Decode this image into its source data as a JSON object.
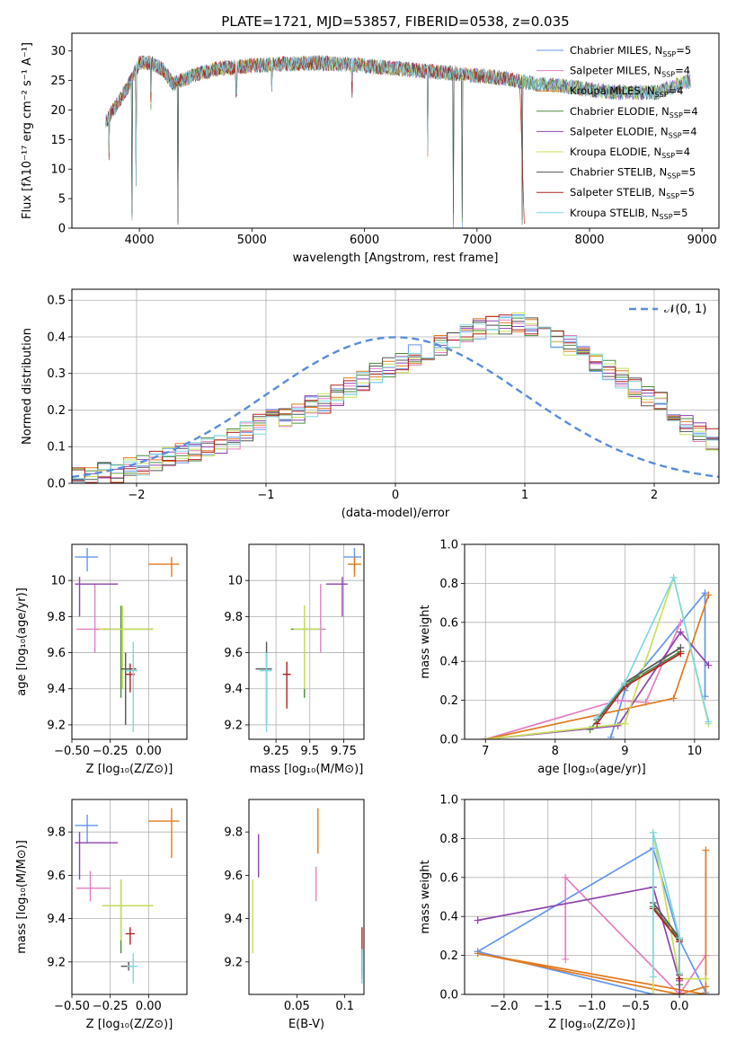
{
  "title": "PLATE=1721, MJD=53857, FIBERID=0538, z=0.035",
  "models": [
    {
      "name": "Chabrier MILES",
      "nssp": 5,
      "color": "#6495ED"
    },
    {
      "name": "Salpeter MILES",
      "nssp": 4,
      "color": "#E37FC0"
    },
    {
      "name": "Kroupa MILES",
      "nssp": 4,
      "color": "#E07A1F"
    },
    {
      "name": "Chabrier ELODIE",
      "nssp": 4,
      "color": "#4C8A3E"
    },
    {
      "name": "Salpeter ELODIE",
      "nssp": 4,
      "color": "#8E44AD"
    },
    {
      "name": "Kroupa ELODIE",
      "nssp": 4,
      "color": "#C8E05A"
    },
    {
      "name": "Chabrier STELIB",
      "nssp": 5,
      "color": "#555555"
    },
    {
      "name": "Salpeter STELIB",
      "nssp": 5,
      "color": "#B22222"
    },
    {
      "name": "Kroupa STELIB",
      "nssp": 5,
      "color": "#7FD8E0"
    }
  ],
  "chart_data": [
    {
      "type": "line",
      "id": "spectrum",
      "title": "PLATE=1721, MJD=53857, FIBERID=0538, z=0.035",
      "xlabel": "wavelength [Angstrom, rest frame]",
      "ylabel": "Flux [fλ10⁻¹⁷ erg cm⁻² s⁻¹ A⁻¹]",
      "xlim": [
        3400,
        9150
      ],
      "ylim": [
        0,
        33
      ],
      "xticks": [
        4000,
        5000,
        6000,
        7000,
        8000,
        9000
      ],
      "yticks": [
        0,
        5,
        10,
        15,
        20,
        25,
        30
      ],
      "grid": false,
      "legend": "top-right",
      "continuum": {
        "x": [
          3700,
          3800,
          3900,
          4000,
          4100,
          4200,
          4300,
          4500,
          4700,
          5000,
          5300,
          5600,
          6000,
          6300,
          6600,
          6900,
          7200,
          7500,
          7800,
          8200,
          8600,
          8900
        ],
        "y": [
          18,
          21,
          24,
          28,
          28,
          27,
          24.5,
          26,
          27,
          27.5,
          27.8,
          28,
          27.5,
          27,
          26.5,
          26,
          25.5,
          24.5,
          24,
          23,
          23,
          25
        ]
      },
      "dips": [
        {
          "x": 3728,
          "y": 11
        },
        {
          "x": 3933,
          "y": 0
        },
        {
          "x": 3969,
          "y": 7
        },
        {
          "x": 4102,
          "y": 20
        },
        {
          "x": 4340,
          "y": 0
        },
        {
          "x": 4861,
          "y": 22
        },
        {
          "x": 5175,
          "y": 23
        },
        {
          "x": 5890,
          "y": 22
        },
        {
          "x": 6563,
          "y": 12
        },
        {
          "x": 6790,
          "y": 0
        },
        {
          "x": 6870,
          "y": 0
        },
        {
          "x": 7400,
          "y": 0
        }
      ]
    },
    {
      "type": "area",
      "id": "residuals",
      "xlabel": "(data-model)/error",
      "ylabel": "Normed distribution",
      "xlim": [
        -2.5,
        2.5
      ],
      "ylim": [
        0,
        0.53
      ],
      "xticks": [
        -2,
        -1,
        0,
        1,
        2
      ],
      "yticks": [
        0.0,
        0.1,
        0.2,
        0.3,
        0.4,
        0.5
      ],
      "grid": true,
      "legend": "top-right",
      "legend_label": "𝒩(0, 1)",
      "bin_width": 0.1,
      "bin_start": -2.5,
      "hist": [
        0.02,
        0.02,
        0.03,
        0.03,
        0.04,
        0.05,
        0.06,
        0.07,
        0.08,
        0.09,
        0.1,
        0.11,
        0.12,
        0.14,
        0.16,
        0.18,
        0.18,
        0.19,
        0.21,
        0.22,
        0.24,
        0.26,
        0.28,
        0.3,
        0.32,
        0.33,
        0.35,
        0.36,
        0.38,
        0.39,
        0.41,
        0.42,
        0.43,
        0.43,
        0.44,
        0.43,
        0.42,
        0.4,
        0.38,
        0.35,
        0.33,
        0.31,
        0.29,
        0.26,
        0.24,
        0.22,
        0.19,
        0.16,
        0.14,
        0.12,
        0.1,
        0.08,
        0.07,
        0.05,
        0.04,
        0.03,
        0.025,
        0.02,
        0.02,
        0.02
      ]
    },
    {
      "type": "scatter",
      "id": "age-vs-Z",
      "xlabel": "Z [log₁₀(Z/Z⊙)]",
      "ylabel": "age  [log₁₀(age/yr)]",
      "xlim": [
        -0.5,
        0.25
      ],
      "ylim": [
        9.12,
        10.2
      ],
      "xticks": [
        -0.5,
        -0.25,
        0.0
      ],
      "yticks": [
        9.2,
        9.4,
        9.6,
        9.8,
        10.0
      ],
      "grid": true,
      "points": [
        {
          "m": 0,
          "x": -0.4,
          "y": 10.13,
          "ex": [
            -0.48,
            -0.33
          ],
          "ey": [
            10.05,
            10.18
          ]
        },
        {
          "m": 1,
          "x": -0.35,
          "y": 9.73,
          "ex": [
            -0.47,
            -0.25
          ],
          "ey": [
            9.6,
            9.98
          ]
        },
        {
          "m": 2,
          "x": 0.15,
          "y": 10.09,
          "ex": [
            0.0,
            0.2
          ],
          "ey": [
            10.02,
            10.13
          ]
        },
        {
          "m": 3,
          "x": -0.18,
          "y": 9.73,
          "ex": [
            -0.3,
            0.03
          ],
          "ey": [
            9.35,
            9.86
          ]
        },
        {
          "m": 4,
          "x": -0.45,
          "y": 9.98,
          "ex": [
            -0.48,
            -0.2
          ],
          "ey": [
            9.8,
            10.02
          ]
        },
        {
          "m": 5,
          "x": -0.17,
          "y": 9.73,
          "ex": [
            -0.32,
            0.03
          ],
          "ey": [
            9.4,
            9.86
          ]
        },
        {
          "m": 6,
          "x": -0.15,
          "y": 9.51,
          "ex": [
            -0.18,
            -0.08
          ],
          "ey": [
            9.2,
            9.6
          ]
        },
        {
          "m": 7,
          "x": -0.12,
          "y": 9.48,
          "ex": [
            -0.15,
            -0.09
          ],
          "ey": [
            9.38,
            9.54
          ]
        },
        {
          "m": 8,
          "x": -0.1,
          "y": 9.5,
          "ex": [
            -0.15,
            -0.07
          ],
          "ey": [
            9.16,
            9.66
          ]
        }
      ]
    },
    {
      "type": "scatter",
      "id": "age-vs-mass",
      "xlabel": "mass [log₁₀(M/M⊙)]",
      "ylabel": "",
      "xlim": [
        9.05,
        9.9
      ],
      "ylim": [
        9.12,
        10.2
      ],
      "xticks": [
        9.25,
        9.5,
        9.75
      ],
      "yticks": [
        9.2,
        9.4,
        9.6,
        9.8,
        10.0
      ],
      "grid": true,
      "points": [
        {
          "m": 0,
          "x": 9.83,
          "y": 10.13,
          "ex": [
            9.75,
            9.88
          ],
          "ey": [
            10.05,
            10.18
          ]
        },
        {
          "m": 1,
          "x": 9.58,
          "y": 9.73,
          "ex": [
            9.55,
            9.62
          ],
          "ey": [
            9.6,
            9.98
          ]
        },
        {
          "m": 2,
          "x": 9.83,
          "y": 10.09,
          "ex": [
            9.78,
            9.88
          ],
          "ey": [
            10.02,
            10.13
          ]
        },
        {
          "m": 3,
          "x": 9.46,
          "y": 9.73,
          "ex": [
            9.36,
            9.58
          ],
          "ey": [
            9.35,
            9.86
          ]
        },
        {
          "m": 4,
          "x": 9.74,
          "y": 9.98,
          "ex": [
            9.62,
            9.78
          ],
          "ey": [
            9.8,
            10.02
          ]
        },
        {
          "m": 5,
          "x": 9.46,
          "y": 9.73,
          "ex": [
            9.38,
            9.58
          ],
          "ey": [
            9.4,
            9.86
          ]
        },
        {
          "m": 6,
          "x": 9.18,
          "y": 9.51,
          "ex": [
            9.1,
            9.22
          ],
          "ey": [
            9.2,
            9.66
          ]
        },
        {
          "m": 7,
          "x": 9.33,
          "y": 9.48,
          "ex": [
            9.3,
            9.36
          ],
          "ey": [
            9.29,
            9.55
          ]
        },
        {
          "m": 8,
          "x": 9.18,
          "y": 9.5,
          "ex": [
            9.13,
            9.22
          ],
          "ey": [
            9.16,
            9.6
          ]
        }
      ]
    },
    {
      "type": "line",
      "id": "weight-vs-age",
      "xlabel": "age  [log₁₀(age/yr)]",
      "ylabel": "mass weight",
      "xlim": [
        6.7,
        10.35
      ],
      "ylim": [
        0,
        1.0
      ],
      "xticks": [
        7,
        8,
        9,
        10
      ],
      "yticks": [
        0.0,
        0.2,
        0.4,
        0.6,
        0.8,
        1.0
      ],
      "grid": true,
      "series": [
        {
          "m": 0,
          "x": [
            8.8,
            9.0,
            10.15,
            10.15
          ],
          "y": [
            0.01,
            0.25,
            0.75,
            0.22
          ]
        },
        {
          "m": 1,
          "x": [
            7.0,
            8.9,
            9.3,
            9.8
          ],
          "y": [
            0.0,
            0.2,
            0.19,
            0.6
          ]
        },
        {
          "m": 2,
          "x": [
            7.0,
            9.7,
            10.2
          ],
          "y": [
            0.0,
            0.21,
            0.74
          ]
        },
        {
          "m": 3,
          "x": [
            8.5,
            9.0,
            9.8
          ],
          "y": [
            0.05,
            0.28,
            0.45
          ]
        },
        {
          "m": 4,
          "x": [
            7.0,
            8.9,
            9.8,
            10.2
          ],
          "y": [
            0.0,
            0.07,
            0.55,
            0.38
          ]
        },
        {
          "m": 5,
          "x": [
            7.0,
            9.0,
            9.7,
            10.2
          ],
          "y": [
            0.0,
            0.08,
            0.83,
            0.08
          ]
        },
        {
          "m": 6,
          "x": [
            8.6,
            9.0,
            9.8
          ],
          "y": [
            0.1,
            0.29,
            0.47
          ]
        },
        {
          "m": 7,
          "x": [
            8.6,
            9.0,
            9.8
          ],
          "y": [
            0.08,
            0.27,
            0.44
          ]
        },
        {
          "m": 8,
          "x": [
            8.6,
            9.0,
            9.7,
            10.2
          ],
          "y": [
            0.11,
            0.29,
            0.83,
            0.09
          ]
        }
      ]
    },
    {
      "type": "scatter",
      "id": "mass-vs-Z",
      "xlabel": "Z [log₁₀(Z/Z⊙)]",
      "ylabel": "mass [log₁₀(M/M⊙)]",
      "xlim": [
        -0.5,
        0.25
      ],
      "ylim": [
        9.05,
        9.95
      ],
      "xticks": [
        -0.5,
        -0.25,
        0.0
      ],
      "yticks": [
        9.2,
        9.4,
        9.6,
        9.8
      ],
      "grid": true,
      "points": [
        {
          "m": 0,
          "x": -0.4,
          "y": 9.83,
          "ex": [
            -0.48,
            -0.33
          ],
          "ey": [
            9.75,
            9.88
          ]
        },
        {
          "m": 1,
          "x": -0.38,
          "y": 9.54,
          "ex": [
            -0.47,
            -0.25
          ],
          "ey": [
            9.48,
            9.62
          ]
        },
        {
          "m": 2,
          "x": 0.15,
          "y": 9.85,
          "ex": [
            0.0,
            0.2
          ],
          "ey": [
            9.68,
            9.91
          ]
        },
        {
          "m": 3,
          "x": -0.18,
          "y": 9.46,
          "ex": [
            -0.3,
            0.03
          ],
          "ey": [
            9.24,
            9.58
          ]
        },
        {
          "m": 4,
          "x": -0.45,
          "y": 9.75,
          "ex": [
            -0.48,
            -0.2
          ],
          "ey": [
            9.58,
            9.8
          ]
        },
        {
          "m": 5,
          "x": -0.18,
          "y": 9.46,
          "ex": [
            -0.3,
            0.03
          ],
          "ey": [
            9.3,
            9.58
          ]
        },
        {
          "m": 6,
          "x": -0.13,
          "y": 9.18,
          "ex": [
            -0.18,
            -0.09
          ],
          "ey": [
            9.16,
            9.2
          ]
        },
        {
          "m": 7,
          "x": -0.12,
          "y": 9.33,
          "ex": [
            -0.15,
            -0.09
          ],
          "ey": [
            9.28,
            9.36
          ]
        },
        {
          "m": 8,
          "x": -0.1,
          "y": 9.18,
          "ex": [
            -0.14,
            -0.07
          ],
          "ey": [
            9.1,
            9.24
          ]
        }
      ]
    },
    {
      "type": "scatter",
      "id": "mass-vs-ebv",
      "xlabel": "E(B-V)",
      "ylabel": "",
      "xlim": [
        0.0,
        0.12
      ],
      "ylim": [
        9.05,
        9.95
      ],
      "xticks": [
        0.05,
        0.1
      ],
      "yticks": [
        9.2,
        9.4,
        9.6,
        9.8
      ],
      "grid": false,
      "points": [
        {
          "m": 0,
          "x": 0.118,
          "y": 9.18,
          "ey": [
            9.12,
            9.25
          ]
        },
        {
          "m": 1,
          "x": 0.07,
          "y": 9.56,
          "ey": [
            9.48,
            9.64
          ]
        },
        {
          "m": 2,
          "x": 0.072,
          "y": 9.8,
          "ey": [
            9.7,
            9.91
          ]
        },
        {
          "m": 4,
          "x": 0.01,
          "y": 9.7,
          "ey": [
            9.59,
            9.79
          ]
        },
        {
          "m": 5,
          "x": 0.004,
          "y": 9.4,
          "ey": [
            9.24,
            9.58
          ]
        },
        {
          "m": 6,
          "x": 0.118,
          "y": 9.2,
          "ey": [
            9.14,
            9.26
          ]
        },
        {
          "m": 7,
          "x": 0.118,
          "y": 9.3,
          "ey": [
            9.24,
            9.36
          ]
        },
        {
          "m": 8,
          "x": 0.118,
          "y": 9.18,
          "ey": [
            9.1,
            9.26
          ]
        }
      ]
    },
    {
      "type": "line",
      "id": "weight-vs-Z",
      "xlabel": "Z [log₁₀(Z/Z⊙)]",
      "ylabel": "mass weight",
      "xlim": [
        -2.45,
        0.45
      ],
      "ylim": [
        0,
        1.0
      ],
      "xticks": [
        -2.0,
        -1.5,
        -1.0,
        -0.5,
        0.0
      ],
      "yticks": [
        0.0,
        0.2,
        0.4,
        0.6,
        0.8,
        1.0
      ],
      "grid": true,
      "series": [
        {
          "m": 0,
          "x": [
            -0.3,
            -2.3,
            -0.3,
            0.0,
            0.3
          ],
          "y": [
            0.0,
            0.22,
            0.75,
            0.28,
            0.01
          ]
        },
        {
          "m": 1,
          "x": [
            -1.3,
            -1.3,
            0.0,
            0.3
          ],
          "y": [
            0.18,
            0.6,
            0.0,
            0.2
          ]
        },
        {
          "m": 2,
          "x": [
            0.3,
            0.3,
            -2.3,
            0.0,
            0.3
          ],
          "y": [
            0.74,
            0.0,
            0.21,
            0.0,
            0.04
          ]
        },
        {
          "m": 3,
          "x": [
            -0.3,
            0.0,
            0.0
          ],
          "y": [
            0.45,
            0.28,
            0.05
          ]
        },
        {
          "m": 4,
          "x": [
            -2.3,
            -0.3,
            0.0,
            0.0
          ],
          "y": [
            0.38,
            0.55,
            0.07,
            0.0
          ]
        },
        {
          "m": 5,
          "x": [
            -0.3,
            -0.3,
            0.0,
            0.3
          ],
          "y": [
            0.0,
            0.83,
            0.08,
            0.08
          ]
        },
        {
          "m": 6,
          "x": [
            -0.3,
            0.0,
            0.0
          ],
          "y": [
            0.47,
            0.29,
            0.1
          ]
        },
        {
          "m": 7,
          "x": [
            -0.3,
            0.0,
            0.0
          ],
          "y": [
            0.44,
            0.27,
            0.08
          ]
        },
        {
          "m": 8,
          "x": [
            -0.3,
            -0.3,
            0.0,
            0.0
          ],
          "y": [
            0.09,
            0.83,
            0.29,
            0.11
          ]
        }
      ]
    }
  ]
}
